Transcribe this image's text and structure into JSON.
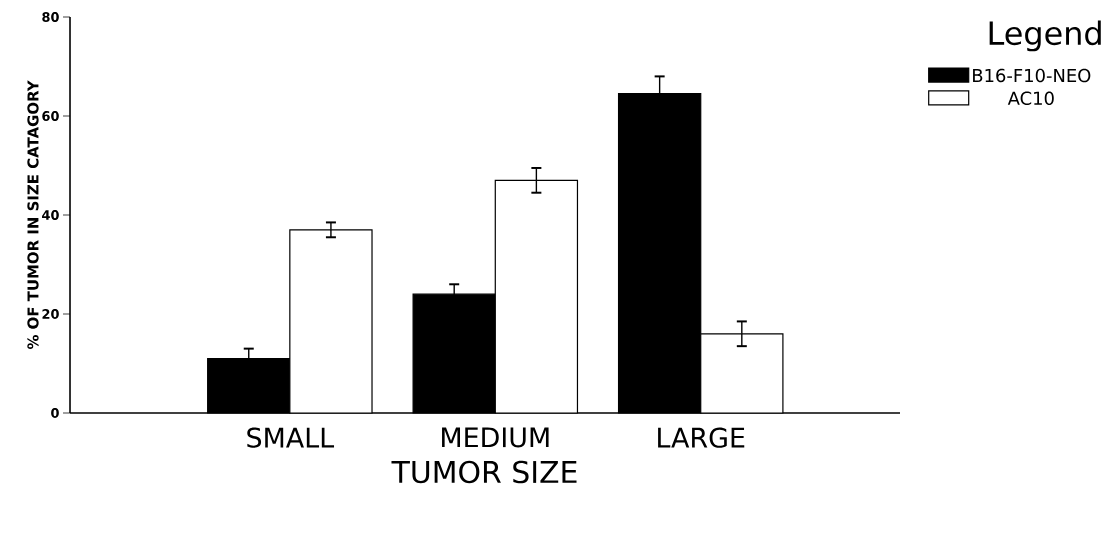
{
  "chart_data": {
    "type": "bar",
    "xlabel": "TUMOR SIZE",
    "ylabel": "% OF TUMOR IN SIZE CATAGORY",
    "legend_title": "Legend",
    "categories": [
      "SMALL",
      "MEDIUM",
      "LARGE"
    ],
    "series": [
      {
        "name": "B16-F10-NEO",
        "color": "#000000",
        "values": [
          11,
          24,
          64.5
        ],
        "errors": [
          2,
          2,
          3.5
        ]
      },
      {
        "name": "AC10",
        "color": "#ffffff",
        "values": [
          37,
          47,
          16
        ],
        "errors": [
          1.5,
          2.5,
          2.5
        ]
      }
    ],
    "ylim": [
      0,
      80
    ],
    "yticks": [
      0,
      20,
      40,
      60,
      80
    ],
    "grid": false,
    "legend": "top right"
  }
}
